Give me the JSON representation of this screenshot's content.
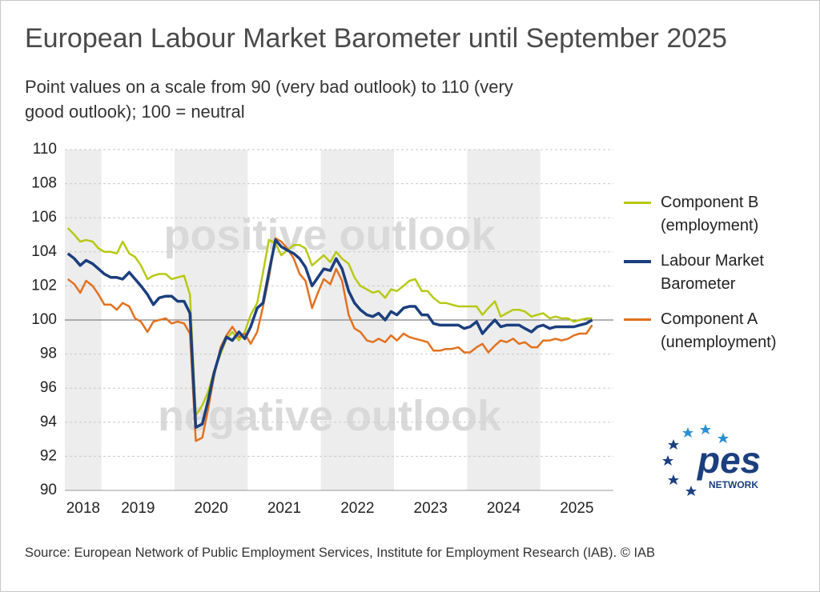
{
  "chart_data": {
    "type": "line",
    "title": "European Labour Market Barometer until September 2025",
    "subtitle": "Point values on a scale from 90 (very bad outlook) to 110 (very good outlook); 100 = neutral",
    "source": "Source: European Network of Public Employment Services, Institute for Employment Research (IAB).  © IAB",
    "annotations": [
      "positive outlook",
      "negative outlook"
    ],
    "logo": {
      "text": "pes",
      "subtext": "NETWORK"
    },
    "x": [
      2018.54,
      2018.63,
      2018.71,
      2018.79,
      2018.88,
      2018.96,
      2019.04,
      2019.13,
      2019.21,
      2019.29,
      2019.38,
      2019.46,
      2019.54,
      2019.63,
      2019.71,
      2019.79,
      2019.88,
      2019.96,
      2020.04,
      2020.13,
      2020.21,
      2020.29,
      2020.38,
      2020.46,
      2020.54,
      2020.63,
      2020.71,
      2020.79,
      2020.88,
      2020.96,
      2021.04,
      2021.13,
      2021.21,
      2021.29,
      2021.38,
      2021.46,
      2021.54,
      2021.63,
      2021.71,
      2021.79,
      2021.88,
      2021.96,
      2022.04,
      2022.13,
      2022.21,
      2022.29,
      2022.38,
      2022.46,
      2022.54,
      2022.63,
      2022.71,
      2022.79,
      2022.88,
      2022.96,
      2023.04,
      2023.13,
      2023.21,
      2023.29,
      2023.38,
      2023.46,
      2023.54,
      2023.63,
      2023.71,
      2023.79,
      2023.88,
      2023.96,
      2024.04,
      2024.13,
      2024.21,
      2024.29,
      2024.38,
      2024.46,
      2024.54,
      2024.63,
      2024.71,
      2024.79,
      2024.88,
      2024.96,
      2025.04,
      2025.13,
      2025.21,
      2025.29,
      2025.38,
      2025.46,
      2025.54,
      2025.63,
      2025.71
    ],
    "series": [
      {
        "name": "Component B (employment)",
        "color": "#b7c914",
        "values": [
          105.4,
          105.0,
          104.6,
          104.7,
          104.6,
          104.2,
          104.0,
          104.0,
          103.9,
          104.6,
          103.9,
          103.7,
          103.2,
          102.4,
          102.6,
          102.7,
          102.7,
          102.4,
          102.5,
          102.6,
          101.5,
          94.4,
          95.0,
          95.8,
          97.0,
          98.0,
          98.9,
          99.3,
          98.8,
          99.3,
          100.3,
          101.0,
          102.8,
          104.7,
          104.5,
          103.8,
          104.1,
          104.4,
          104.4,
          104.2,
          103.2,
          103.5,
          103.8,
          103.4,
          104.0,
          103.6,
          103.3,
          102.5,
          102.0,
          101.8,
          101.6,
          101.7,
          101.3,
          101.8,
          101.7,
          102.0,
          102.3,
          102.4,
          101.7,
          101.7,
          101.3,
          101.0,
          101.0,
          100.9,
          100.8,
          100.8,
          100.8,
          100.8,
          100.3,
          100.7,
          101.1,
          100.2,
          100.4,
          100.6,
          100.6,
          100.5,
          100.2,
          100.3,
          100.4,
          100.1,
          100.2,
          100.1,
          100.1,
          99.9,
          100.0,
          100.1,
          100.1
        ]
      },
      {
        "name": "Labour Market Barometer",
        "color": "#1b3f7e",
        "values": [
          103.9,
          103.6,
          103.2,
          103.5,
          103.3,
          103.0,
          102.7,
          102.5,
          102.5,
          102.4,
          102.8,
          102.4,
          102.0,
          101.5,
          100.9,
          101.3,
          101.4,
          101.4,
          101.1,
          101.1,
          100.4,
          93.7,
          93.9,
          95.3,
          96.9,
          98.2,
          99.0,
          98.8,
          99.3,
          98.9,
          99.6,
          100.7,
          101.0,
          102.8,
          104.7,
          104.3,
          104.1,
          103.9,
          103.6,
          103.1,
          102.0,
          102.5,
          103.0,
          102.9,
          103.6,
          103.0,
          101.7,
          101.0,
          100.6,
          100.3,
          100.2,
          100.4,
          100.0,
          100.5,
          100.3,
          100.7,
          100.8,
          100.8,
          100.3,
          100.3,
          99.8,
          99.7,
          99.7,
          99.7,
          99.7,
          99.5,
          99.6,
          99.9,
          99.2,
          99.6,
          100.0,
          99.6,
          99.7,
          99.7,
          99.7,
          99.5,
          99.3,
          99.6,
          99.7,
          99.5,
          99.6,
          99.6,
          99.6,
          99.6,
          99.7,
          99.8,
          100.0
        ]
      },
      {
        "name": "Component A (unemployment)",
        "color": "#e2711f",
        "values": [
          102.4,
          102.1,
          101.6,
          102.3,
          102.0,
          101.5,
          100.9,
          100.9,
          100.6,
          101.0,
          100.8,
          100.1,
          99.9,
          99.3,
          99.9,
          100.0,
          100.1,
          99.8,
          99.9,
          99.8,
          99.2,
          92.9,
          93.1,
          94.8,
          96.7,
          98.4,
          99.1,
          99.6,
          99.0,
          99.2,
          98.6,
          99.3,
          100.8,
          102.5,
          104.8,
          104.6,
          104.2,
          103.6,
          102.7,
          102.3,
          100.7,
          101.6,
          102.4,
          102.1,
          103.0,
          102.3,
          100.3,
          99.5,
          99.3,
          98.8,
          98.7,
          98.9,
          98.7,
          99.1,
          98.8,
          99.2,
          99.0,
          98.9,
          98.8,
          98.7,
          98.2,
          98.2,
          98.3,
          98.3,
          98.4,
          98.1,
          98.1,
          98.4,
          98.6,
          98.1,
          98.5,
          98.8,
          98.7,
          98.9,
          98.6,
          98.7,
          98.4,
          98.4,
          98.8,
          98.8,
          98.9,
          98.8,
          98.9,
          99.1,
          99.2,
          99.2,
          99.7
        ]
      }
    ],
    "xlim": [
      2018.5,
      2026
    ],
    "xticks": [
      {
        "value": 2018.75,
        "label": "2018"
      },
      {
        "value": 2019.5,
        "label": "2019"
      },
      {
        "value": 2020.5,
        "label": "2020"
      },
      {
        "value": 2021.5,
        "label": "2021"
      },
      {
        "value": 2022.5,
        "label": "2022"
      },
      {
        "value": 2023.5,
        "label": "2023"
      },
      {
        "value": 2024.5,
        "label": "2024"
      },
      {
        "value": 2025.5,
        "label": "2025"
      }
    ],
    "ylim": [
      90,
      110
    ],
    "yticks": [
      90,
      92,
      94,
      96,
      98,
      100,
      102,
      104,
      106,
      108,
      110
    ],
    "hline": 100,
    "grid": true,
    "legend": "right"
  }
}
